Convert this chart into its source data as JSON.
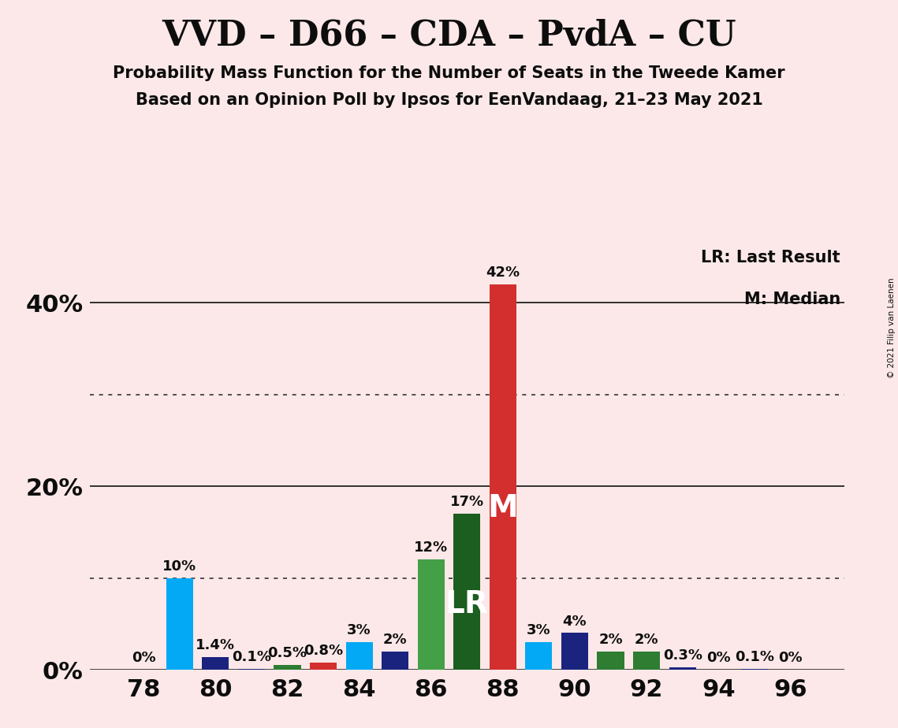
{
  "title": "VVD – D66 – CDA – PvdA – CU",
  "subtitle1": "Probability Mass Function for the Number of Seats in the Tweede Kamer",
  "subtitle2": "Based on an Opinion Poll by Ipsos for EenVandaag, 21–23 May 2021",
  "copyright": "© 2021 Filip van Laenen",
  "background_color": "#fce8e8",
  "bars": [
    {
      "x": 78,
      "pct": 0.0,
      "label": "0%",
      "color": "#1565c0"
    },
    {
      "x": 79,
      "pct": 10.0,
      "label": "10%",
      "color": "#03a9f4"
    },
    {
      "x": 80,
      "pct": 1.4,
      "label": "1.4%",
      "color": "#1a237e"
    },
    {
      "x": 81,
      "pct": 0.1,
      "label": "0.1%",
      "color": "#1a237e"
    },
    {
      "x": 82,
      "pct": 0.5,
      "label": "0.5%",
      "color": "#2e7d32"
    },
    {
      "x": 83,
      "pct": 0.8,
      "label": "0.8%",
      "color": "#d32f2f"
    },
    {
      "x": 84,
      "pct": 3.0,
      "label": "3%",
      "color": "#03a9f4"
    },
    {
      "x": 85,
      "pct": 2.0,
      "label": "2%",
      "color": "#1a237e"
    },
    {
      "x": 86,
      "pct": 12.0,
      "label": "12%",
      "color": "#43a047"
    },
    {
      "x": 87,
      "pct": 17.0,
      "label": "17%",
      "color": "#1b5e20",
      "annotation": "LR",
      "ann_color": "#ffffff"
    },
    {
      "x": 88,
      "pct": 42.0,
      "label": "42%",
      "color": "#d32f2f",
      "annotation": "M",
      "ann_color": "#ffffff"
    },
    {
      "x": 89,
      "pct": 3.0,
      "label": "3%",
      "color": "#03a9f4"
    },
    {
      "x": 90,
      "pct": 4.0,
      "label": "4%",
      "color": "#1a237e"
    },
    {
      "x": 91,
      "pct": 2.0,
      "label": "2%",
      "color": "#2e7d32"
    },
    {
      "x": 92,
      "pct": 2.0,
      "label": "2%",
      "color": "#2e7d32"
    },
    {
      "x": 93,
      "pct": 0.3,
      "label": "0.3%",
      "color": "#1a237e"
    },
    {
      "x": 94,
      "pct": 0.0,
      "label": "0%",
      "color": "#1565c0"
    },
    {
      "x": 95,
      "pct": 0.1,
      "label": "0.1%",
      "color": "#1a237e"
    },
    {
      "x": 96,
      "pct": 0.0,
      "label": "0%",
      "color": "#d32f2f"
    }
  ],
  "xlim": [
    76.5,
    97.5
  ],
  "ylim": [
    0,
    46
  ],
  "yticks_solid": [
    0,
    20,
    40
  ],
  "yticks_dotted": [
    10,
    30
  ],
  "ytick_labels": {
    "0": "0%",
    "10": "",
    "20": "20%",
    "30": "",
    "40": "40%"
  },
  "xticks": [
    78,
    80,
    82,
    84,
    86,
    88,
    90,
    92,
    94,
    96
  ],
  "bar_width": 0.75,
  "pct_fontsize": 13,
  "ann_fontsize": 28,
  "title_fontsize": 32,
  "subtitle_fontsize": 15,
  "axis_label_fontsize": 22
}
